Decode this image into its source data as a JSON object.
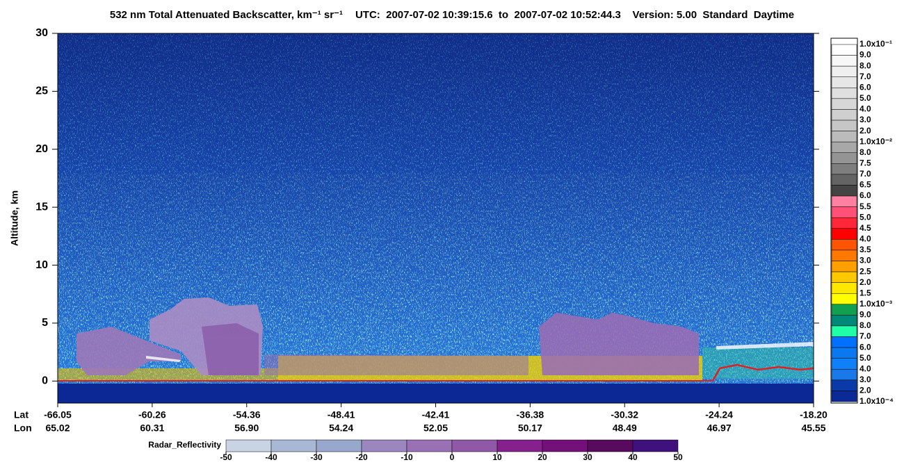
{
  "chart_data": {
    "type": "curtain",
    "title": "532 nm Total Attenuated Backscatter, km⁻¹ sr⁻¹",
    "subtitle": "UTC:  2007-07-02 10:39:15.6  to  2007-07-02 10:52:44.3    Version: 5.00  Standard  Daytime",
    "ylabel": "Altitude, km",
    "ylim": [
      -1.9,
      30
    ],
    "yticks": [
      0,
      5,
      10,
      15,
      20,
      25,
      30
    ],
    "row_labels": [
      "Lat",
      "Lon"
    ],
    "lat": [
      "-66.05",
      "-60.26",
      "-54.36",
      "-48.41",
      "-42.41",
      "-36.38",
      "-30.32",
      "-24.24",
      "-18.20"
    ],
    "lon": [
      "65.02",
      "60.31",
      "56.90",
      "54.24",
      "52.05",
      "50.17",
      "48.49",
      "46.97",
      "45.55"
    ],
    "colorbar_labels": [
      "1.0x10⁻¹",
      "9.0",
      "8.0",
      "7.0",
      "6.0",
      "5.0",
      "4.0",
      "3.0",
      "2.0",
      "1.0x10⁻²",
      "8.0",
      "7.5",
      "7.0",
      "6.5",
      "6.0",
      "5.5",
      "5.0",
      "4.5",
      "4.0",
      "3.5",
      "3.0",
      "2.5",
      "2.0",
      "1.5",
      "1.0x10⁻³",
      "9.0",
      "8.0",
      "7.0",
      "6.0",
      "5.0",
      "4.0",
      "3.0",
      "2.0",
      "1.0x10⁻⁴"
    ],
    "colorbar_colors": [
      "#ffffff",
      "#f7f7f7",
      "#efefef",
      "#e7e7e7",
      "#dfdfdf",
      "#d7d7d7",
      "#cfcfcf",
      "#c6c6c6",
      "#bbbbbb",
      "#a8a8a8",
      "#949494",
      "#7e7e7e",
      "#646464",
      "#444444",
      "#ff80a0",
      "#ff5078",
      "#ff2838",
      "#ff0000",
      "#ff5500",
      "#ff7800",
      "#ffa000",
      "#ffc800",
      "#ffe800",
      "#ffff00",
      "#10a050",
      "#008878",
      "#20ffa8",
      "#0070ff",
      "#0a78f0",
      "#1080f8",
      "#1a78e8",
      "#0a3aa8",
      "#0a2a98"
    ],
    "radar_label": "Radar_Reflectivity",
    "radar_lim": [
      -50,
      50
    ],
    "radar_ticks": [
      -50,
      -40,
      -30,
      -20,
      -10,
      0,
      10,
      20,
      30,
      40,
      50
    ],
    "radar_colors": [
      "#c8d4e4",
      "#a8b8d4",
      "#98a8cc",
      "#9c86c0",
      "#9a70b4",
      "#9258a8",
      "#86208c",
      "#74107a",
      "#580a5c",
      "#40107c"
    ]
  }
}
